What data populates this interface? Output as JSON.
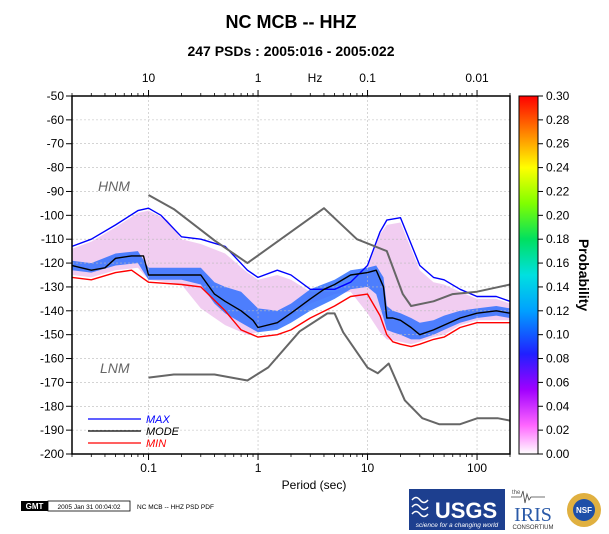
{
  "chart_data": {
    "type": "heatmap",
    "title": "NC MCB -- HHZ",
    "subtitle": "247 PSDs : 2005:016 - 2005:022",
    "xlabel": "Period (sec)",
    "ylabel": "",
    "top_axis_unit": "Hz",
    "colorbar_label": "Probability",
    "xscale": "log",
    "xlim": [
      0.02,
      200
    ],
    "ylim": [
      -200,
      -50
    ],
    "x_ticks": [
      0.1,
      1,
      10,
      100
    ],
    "x_tick_labels": [
      "0.1",
      "1",
      "10",
      "100"
    ],
    "top_ticks_hz": [
      10,
      1,
      0.1,
      0.01
    ],
    "top_tick_labels": [
      "10",
      "1",
      "0.1",
      "0.01"
    ],
    "y_ticks": [
      -50,
      -60,
      -70,
      -80,
      -90,
      -100,
      -110,
      -120,
      -130,
      -140,
      -150,
      -160,
      -170,
      -180,
      -190,
      -200
    ],
    "y_tick_labels": [
      "-50",
      "-60",
      "-70",
      "-80",
      "-90",
      "-100",
      "-110",
      "-120",
      "-130",
      "-140",
      "-150",
      "-160",
      "-170",
      "-180",
      "-190",
      "-200"
    ],
    "colorbar_range": [
      0,
      0.3
    ],
    "colorbar_ticks": [
      0.0,
      0.02,
      0.04,
      0.06,
      0.08,
      0.1,
      0.12,
      0.14,
      0.16,
      0.18,
      0.2,
      0.22,
      0.24,
      0.26,
      0.28,
      0.3
    ],
    "colorbar_tick_labels": [
      "0.00",
      "0.02",
      "0.04",
      "0.06",
      "0.08",
      "0.10",
      "0.12",
      "0.14",
      "0.16",
      "0.18",
      "0.20",
      "0.22",
      "0.24",
      "0.26",
      "0.28",
      "0.30"
    ],
    "grid": true,
    "legend_position": "bottom-left",
    "series": [
      {
        "name": "MAX",
        "color": "#0000ff",
        "x": [
          0.02,
          0.03,
          0.05,
          0.08,
          0.1,
          0.13,
          0.2,
          0.3,
          0.5,
          0.8,
          1,
          1.5,
          2,
          3,
          5,
          7,
          10,
          13,
          15,
          20,
          25,
          30,
          40,
          50,
          70,
          100,
          150,
          200
        ],
        "y": [
          -113,
          -110,
          -104,
          -98,
          -97,
          -100,
          -109,
          -110,
          -113,
          -123,
          -126,
          -123,
          -125,
          -131,
          -131,
          -128,
          -121,
          -107,
          -102,
          -101,
          -112,
          -121,
          -126,
          -127,
          -131,
          -134,
          -134,
          -136
        ]
      },
      {
        "name": "MODE",
        "color": "#000000",
        "x": [
          0.02,
          0.03,
          0.04,
          0.05,
          0.07,
          0.09,
          0.1,
          0.15,
          0.2,
          0.3,
          0.4,
          0.5,
          0.7,
          0.9,
          1,
          1.5,
          2,
          3,
          4,
          5,
          7,
          10,
          12,
          14,
          15,
          17,
          20,
          25,
          30,
          40,
          50,
          70,
          100,
          150,
          200
        ],
        "y": [
          -121,
          -123,
          -122,
          -118,
          -117,
          -117,
          -125,
          -125,
          -125,
          -125,
          -133,
          -136,
          -140,
          -144,
          -147,
          -145,
          -141,
          -135,
          -131,
          -129,
          -125,
          -124,
          -123,
          -130,
          -143,
          -143,
          -144,
          -147,
          -150,
          -148,
          -146,
          -143,
          -141,
          -140,
          -141
        ]
      },
      {
        "name": "MIN",
        "color": "#ff0000",
        "x": [
          0.02,
          0.03,
          0.05,
          0.07,
          0.1,
          0.2,
          0.3,
          0.5,
          0.7,
          1,
          1.5,
          2,
          3,
          5,
          7,
          10,
          13,
          15,
          17,
          20,
          25,
          30,
          40,
          50,
          70,
          100,
          150,
          200
        ],
        "y": [
          -126,
          -127,
          -124,
          -123,
          -128,
          -129,
          -130,
          -140,
          -148,
          -151,
          -150,
          -148,
          -143,
          -138,
          -134,
          -133,
          -142,
          -150,
          -153,
          -154,
          -155,
          -154,
          -152,
          -151,
          -147,
          -145,
          -145,
          -145
        ]
      },
      {
        "name": "HNM",
        "color": "#666666",
        "x": [
          0.1,
          0.17,
          0.4,
          0.8,
          4,
          8,
          15,
          21,
          25,
          40,
          60,
          100,
          200
        ],
        "y": [
          -91.5,
          -97.4,
          -110.5,
          -120,
          -97,
          -110,
          -115,
          -133,
          -138,
          -136,
          -133,
          -132,
          -129
        ]
      },
      {
        "name": "LNM",
        "color": "#666666",
        "x": [
          0.1,
          0.17,
          0.4,
          0.8,
          1.24,
          2.4,
          4.3,
          5,
          6,
          10,
          12.4,
          15.6,
          21.9,
          31.6,
          45,
          70,
          101,
          154,
          200
        ],
        "y": [
          -168,
          -166.7,
          -166.7,
          -169.2,
          -163.7,
          -148.6,
          -141.1,
          -141.1,
          -149,
          -163.8,
          -166.2,
          -162.1,
          -177.5,
          -185,
          -187.5,
          -187.5,
          -185,
          -185,
          -186
        ]
      }
    ],
    "density_bands": [
      {
        "name": "pink-cloud",
        "x": [
          0.02,
          0.03,
          0.05,
          0.08,
          0.1,
          0.15,
          0.2,
          0.3,
          0.5,
          0.8,
          1,
          1.5,
          2,
          3,
          5,
          7,
          10,
          13,
          15,
          20,
          25,
          30,
          40,
          50,
          70,
          100,
          150,
          200
        ],
        "upper": [
          -114,
          -111,
          -105,
          -99,
          -98,
          -102,
          -110,
          -112,
          -116,
          -124,
          -127,
          -125,
          -127,
          -132,
          -132,
          -129,
          -122,
          -108,
          -104,
          -103,
          -114,
          -123,
          -128,
          -129,
          -132,
          -135,
          -135,
          -137
        ],
        "lower": [
          -125,
          -126,
          -123,
          -122,
          -127,
          -128,
          -129,
          -139,
          -146,
          -150,
          -149,
          -146,
          -142,
          -137,
          -133,
          -132,
          -141,
          -149,
          -152,
          -153,
          -154,
          -153,
          -151,
          -150,
          -146,
          -144,
          -144,
          -144
        ]
      },
      {
        "name": "core-band",
        "x": [
          0.02,
          0.03,
          0.05,
          0.08,
          0.1,
          0.15,
          0.2,
          0.3,
          0.4,
          0.5,
          0.7,
          1,
          1.5,
          2,
          3,
          5,
          7,
          10,
          12,
          14,
          15,
          17,
          20,
          25,
          30,
          40,
          50,
          70,
          100,
          150,
          200
        ],
        "upper": [
          -119,
          -120,
          -116,
          -115,
          -122,
          -122,
          -122,
          -122,
          -128,
          -130,
          -132,
          -139,
          -140,
          -137,
          -131,
          -127,
          -123,
          -122,
          -121,
          -126,
          -138,
          -140,
          -141,
          -143,
          -145,
          -144,
          -142,
          -140,
          -139,
          -138,
          -139
        ],
        "lower": [
          -123,
          -124,
          -121,
          -120,
          -127,
          -127,
          -127,
          -129,
          -137,
          -141,
          -145,
          -149,
          -148,
          -145,
          -140,
          -135,
          -131,
          -130,
          -133,
          -143,
          -148,
          -149,
          -150,
          -152,
          -152,
          -150,
          -148,
          -145,
          -143,
          -142,
          -143
        ]
      }
    ]
  },
  "footer": {
    "gmt_logo": "GMT",
    "timestamp": "2005 Jan 31 00:04:02",
    "caption": "NC MCB -- HHZ PSD PDF",
    "usgs_logo": "USGS",
    "usgs_tagline": "science for a changing world",
    "iris_small": "the",
    "iris_logo": "IRIS",
    "iris_sub": "CONSORTIUM",
    "nsf_logo": "NSF"
  },
  "colors": {
    "pink_cloud": "#f0c8f0",
    "core_band": "#3070ff",
    "frame": "#000000",
    "grid": "#bbbbbb"
  }
}
